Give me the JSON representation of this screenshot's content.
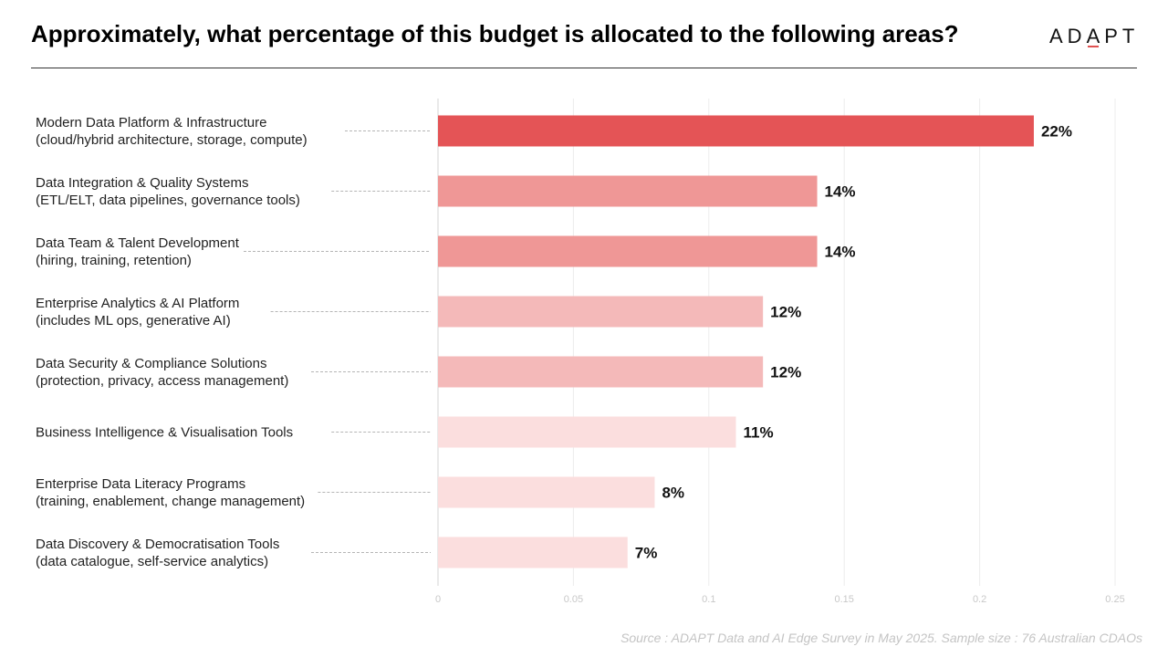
{
  "header": {
    "title": "Approximately, what percentage of this budget is allocated to the following areas?",
    "logo": "ADAPT",
    "logo_accent_color": "#e05252"
  },
  "chart_data": {
    "type": "bar",
    "orientation": "horizontal",
    "categories": [
      [
        "Modern Data Platform & Infrastructure",
        "(cloud/hybrid architecture, storage, compute)"
      ],
      [
        "Data Integration & Quality Systems",
        "(ETL/ELT, data pipelines, governance tools)"
      ],
      [
        "Data Team & Talent Development",
        "(hiring, training, retention)"
      ],
      [
        "Enterprise Analytics & AI Platform",
        "(includes ML ops, generative AI)"
      ],
      [
        "Data Security & Compliance Solutions",
        "(protection, privacy, access management)"
      ],
      [
        "Business Intelligence & Visualisation Tools"
      ],
      [
        "Enterprise Data Literacy Programs",
        "(training, enablement, change management)"
      ],
      [
        "Data Discovery & Democratisation Tools",
        "(data catalogue, self-service analytics)"
      ]
    ],
    "values": [
      0.22,
      0.14,
      0.14,
      0.12,
      0.12,
      0.11,
      0.08,
      0.07
    ],
    "value_labels": [
      "22%",
      "14%",
      "14%",
      "12%",
      "12%",
      "11%",
      "8%",
      "7%"
    ],
    "colors": [
      "#e45456",
      "#ef9796",
      "#ef9796",
      "#f4b9b9",
      "#f4b9b9",
      "#fbdede",
      "#fbdede",
      "#fbdede"
    ],
    "xlim": [
      0,
      0.25
    ],
    "xticks": [
      0,
      0.05,
      0.1,
      0.15,
      0.2,
      0.25
    ],
    "xtick_labels": [
      "0",
      "0.05",
      "0.1",
      "0.15",
      "0.2",
      "0.25"
    ],
    "grid": true,
    "title": "",
    "xlabel": "",
    "ylabel": ""
  },
  "footer": {
    "source": "Source : ADAPT Data and AI Edge Survey in May 2025. Sample size : 76 Australian CDAOs"
  }
}
